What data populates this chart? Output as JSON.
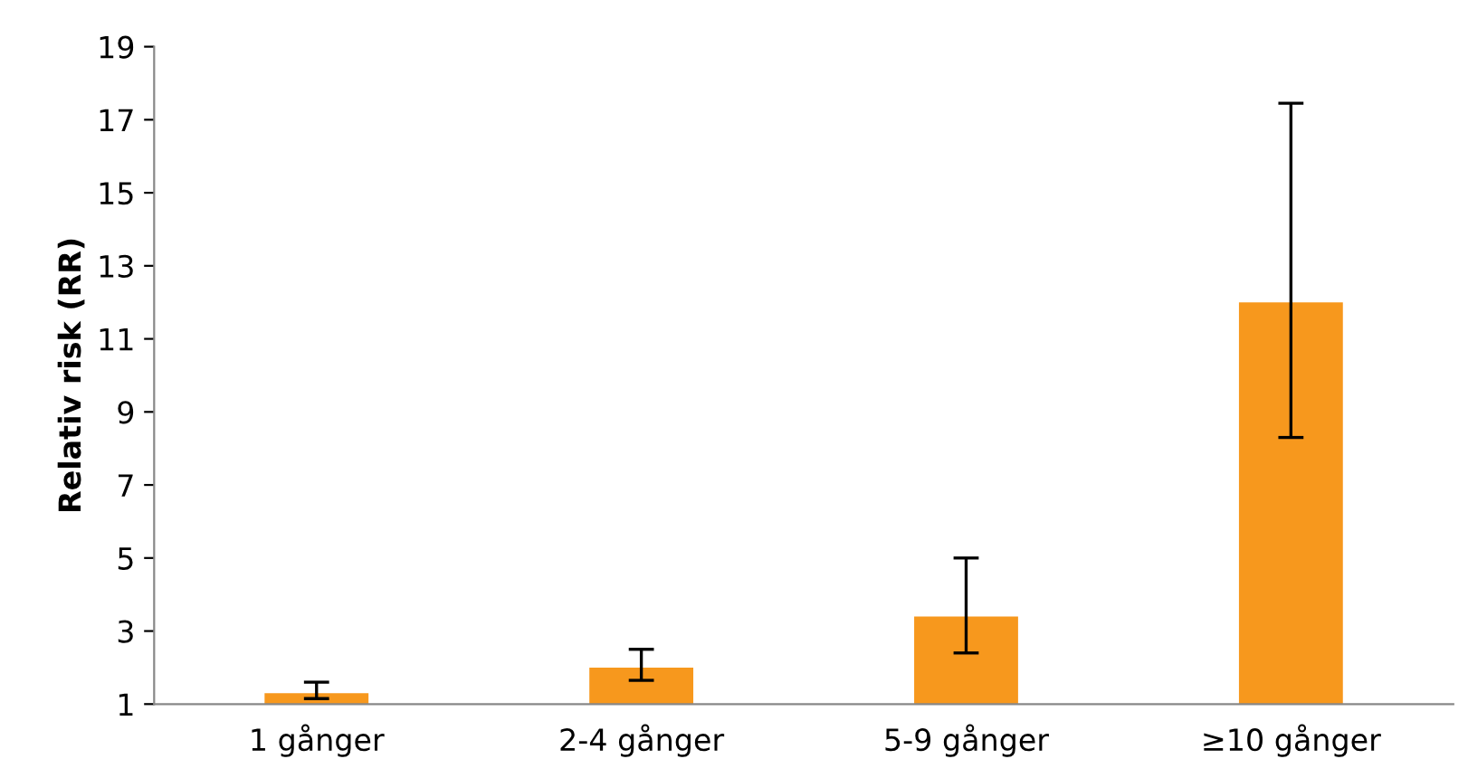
{
  "chart_data": {
    "type": "bar",
    "ylabel": "Relativ risk (RR)",
    "categories": [
      "1 gånger",
      "2-4 gånger",
      "5-9 gånger",
      "≥10 gånger"
    ],
    "values": [
      1.3,
      2.0,
      3.4,
      12.0
    ],
    "errors": [
      [
        1.15,
        1.6
      ],
      [
        1.65,
        2.5
      ],
      [
        2.4,
        5.0
      ],
      [
        8.3,
        17.45
      ]
    ],
    "color": "#f7981d",
    "ylim": [
      1,
      19
    ],
    "yticks": [
      1,
      3,
      5,
      7,
      9,
      11,
      13,
      15,
      17,
      19
    ],
    "grid": false
  }
}
